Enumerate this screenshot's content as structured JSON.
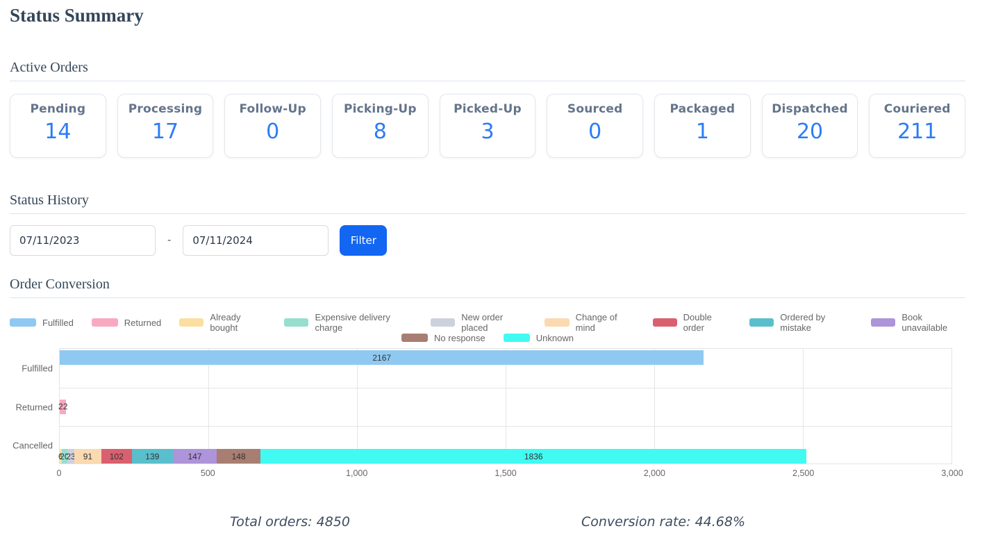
{
  "page_title": "Status Summary",
  "sections": {
    "active_orders": "Active Orders",
    "status_history": "Status History",
    "order_conversion": "Order Conversion"
  },
  "cards": [
    {
      "label": "Pending",
      "value": "14"
    },
    {
      "label": "Processing",
      "value": "17"
    },
    {
      "label": "Follow-Up",
      "value": "0"
    },
    {
      "label": "Picking-Up",
      "value": "8"
    },
    {
      "label": "Picked-Up",
      "value": "3"
    },
    {
      "label": "Sourced",
      "value": "0"
    },
    {
      "label": "Packaged",
      "value": "1"
    },
    {
      "label": "Dispatched",
      "value": "20"
    },
    {
      "label": "Couriered",
      "value": "211"
    }
  ],
  "filter": {
    "start_date": "07/11/2023",
    "separator": "-",
    "end_date": "07/11/2024",
    "button_label": "Filter"
  },
  "chart_data": {
    "type": "bar",
    "orientation": "horizontal",
    "stacked_group": "cancel-reasons",
    "title": "Order Conversion",
    "categories": [
      "Fulfilled",
      "Returned",
      "Cancelled"
    ],
    "xlim": [
      0,
      3000
    ],
    "x_ticks": [
      "0",
      "500",
      "1,000",
      "1,500",
      "2,000",
      "2,500",
      "3,000"
    ],
    "grid": true,
    "legend_position": "top",
    "series": [
      {
        "name": "Fulfilled",
        "color": "#8fc9f1",
        "slot": 0,
        "values": [
          2167,
          0,
          0
        ]
      },
      {
        "name": "Returned",
        "color": "#f8a9c0",
        "slot": 1,
        "values": [
          0,
          22,
          0
        ]
      },
      {
        "name": "Already bought",
        "color": "#fbdfa0",
        "slot": 2,
        "values": [
          0,
          0,
          6
        ]
      },
      {
        "name": "Expensive delivery charge",
        "color": "#97decf",
        "slot": 2,
        "values": [
          0,
          0,
          20
        ]
      },
      {
        "name": "New order placed",
        "color": "#cdd1de",
        "slot": 2,
        "values": [
          0,
          0,
          23
        ]
      },
      {
        "name": "Change of mind",
        "color": "#fbd9b1",
        "slot": 2,
        "values": [
          0,
          0,
          91
        ]
      },
      {
        "name": "Double order",
        "color": "#d9616f",
        "slot": 2,
        "values": [
          0,
          0,
          102
        ]
      },
      {
        "name": "Ordered by mistake",
        "color": "#5abfcc",
        "slot": 2,
        "values": [
          0,
          0,
          139
        ]
      },
      {
        "name": "Book unavailable",
        "color": "#ae94da",
        "slot": 2,
        "values": [
          0,
          0,
          147
        ]
      },
      {
        "name": "No response",
        "color": "#a87e72",
        "slot": 2,
        "values": [
          0,
          0,
          148
        ]
      },
      {
        "name": "Unknown",
        "color": "#41faf2",
        "slot": 2,
        "values": [
          0,
          0,
          1836
        ]
      }
    ]
  },
  "totals": {
    "total_orders": "Total orders: 4850",
    "conversion_rate": "Conversion rate: 44.68%"
  },
  "colors": {
    "accent_blue": "#1266f1",
    "card_value_blue": "#2b7cf8",
    "heading": "#334659",
    "muted_text": "#666666"
  }
}
